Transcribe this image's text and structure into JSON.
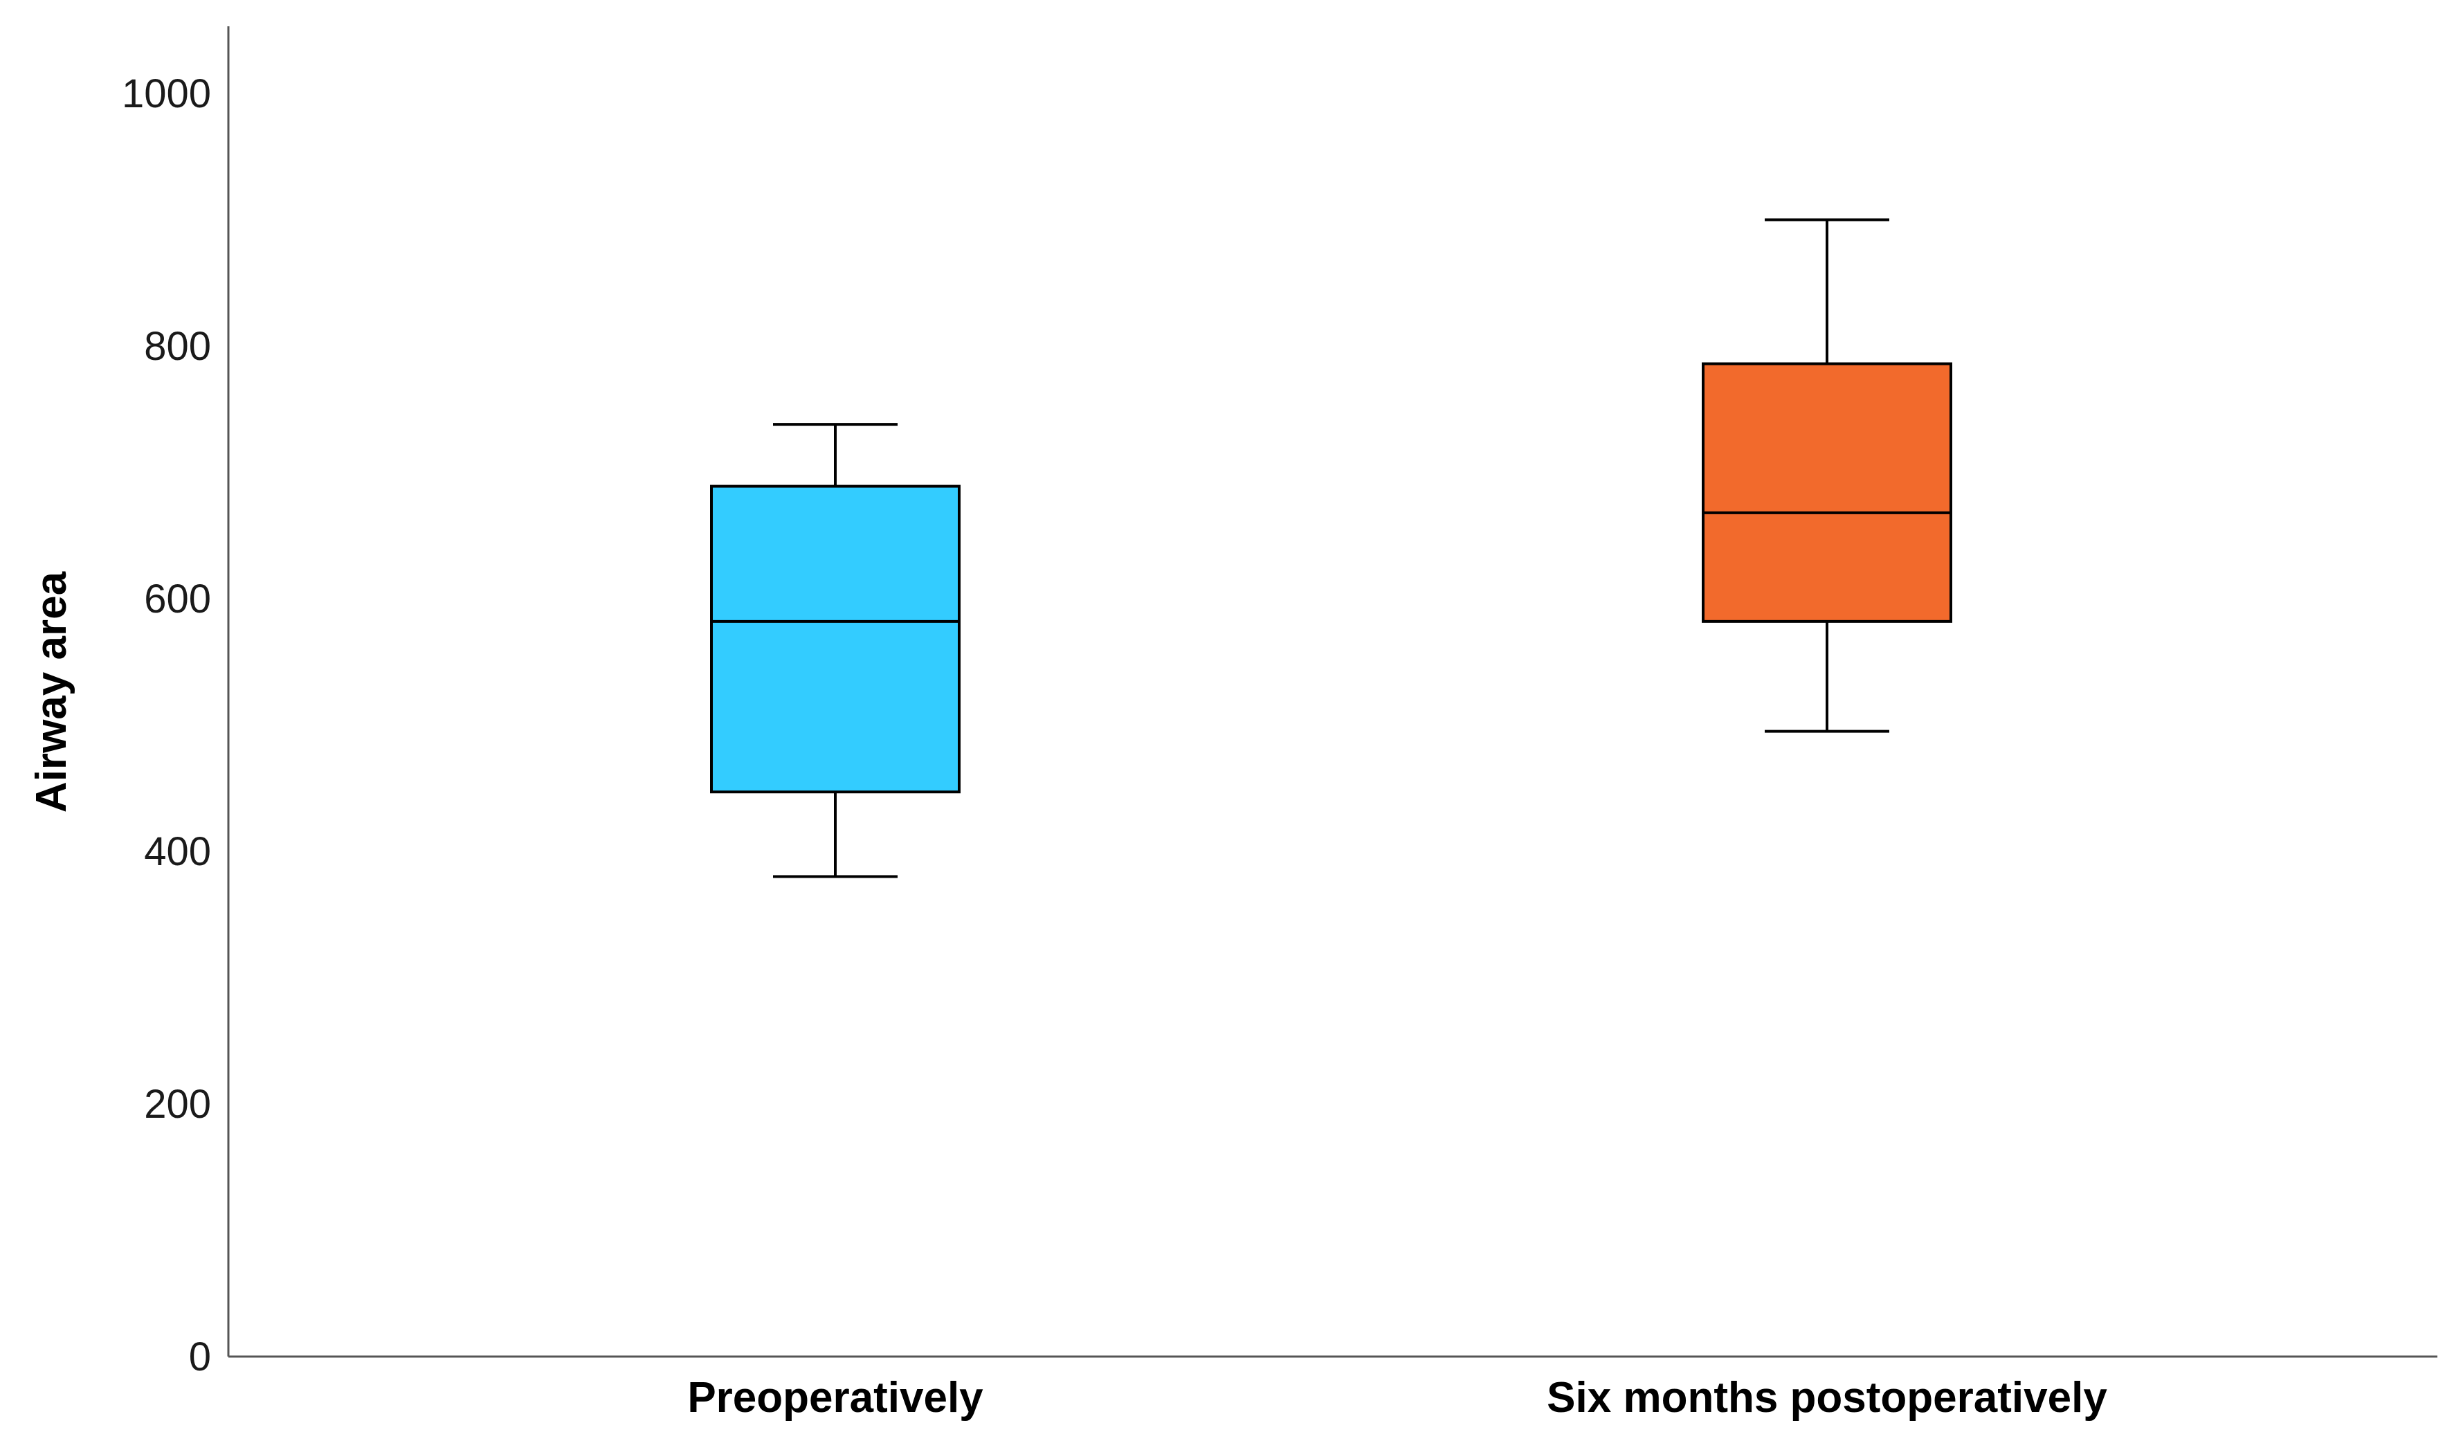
{
  "chart_data": {
    "type": "boxplot",
    "title": "",
    "xlabel": "",
    "ylabel": "Airway area",
    "ylim": [
      0,
      1050
    ],
    "yticks": [
      0,
      200,
      400,
      600,
      800,
      1000
    ],
    "grid": false,
    "categories": [
      "Preoperatively",
      "Six months postoperatively"
    ],
    "boxes": [
      {
        "category": "Preoperatively",
        "min": 380,
        "q1": 447,
        "median": 582,
        "q3": 689,
        "max": 738,
        "color": "#33ccff"
      },
      {
        "category": "Six months postoperatively",
        "min": 495,
        "q1": 582,
        "median": 668,
        "q3": 786,
        "max": 900,
        "color": "#f26a2c"
      }
    ]
  }
}
